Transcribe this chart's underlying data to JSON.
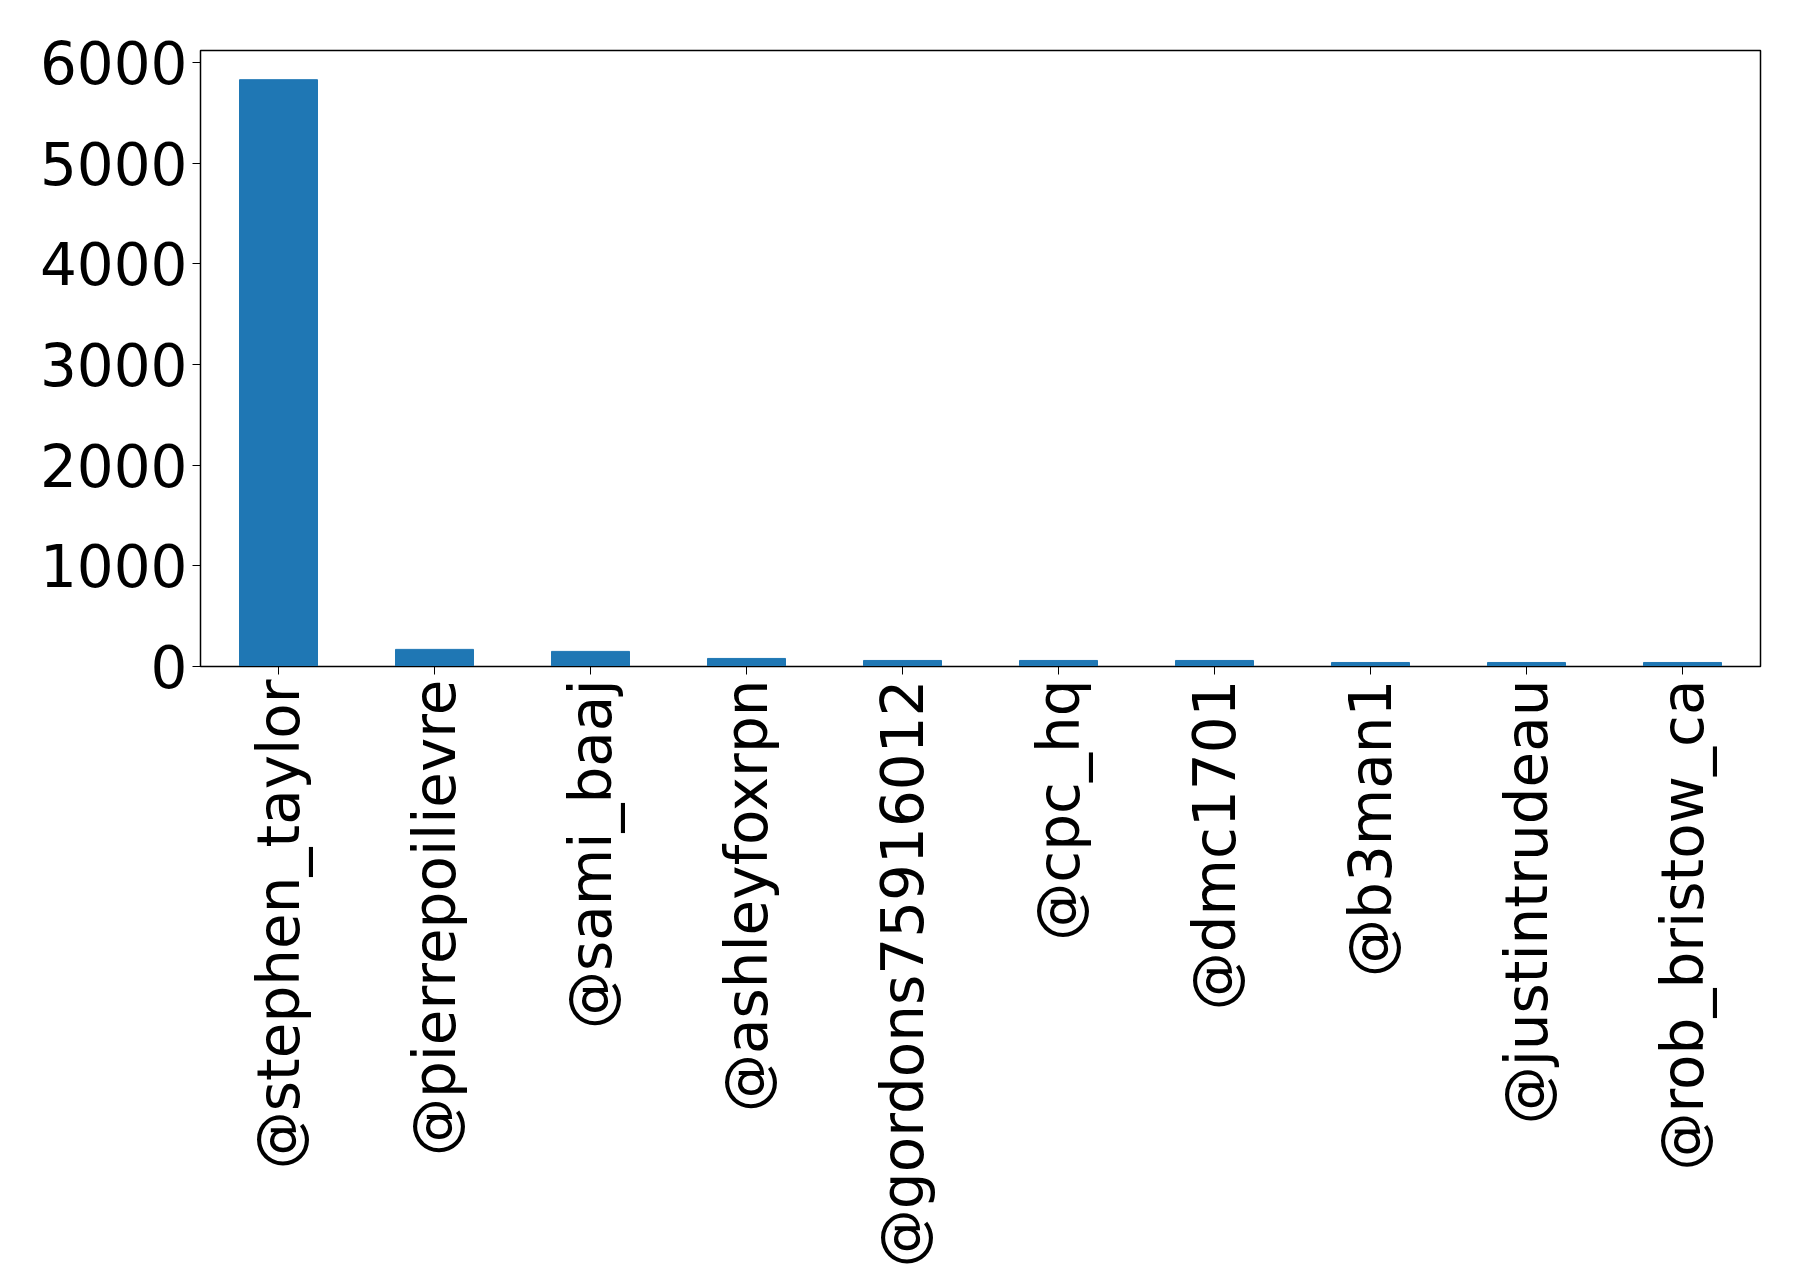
{
  "chart_data": {
    "type": "bar",
    "categories": [
      "@stephen_taylor",
      "@pierrepoilievre",
      "@sami_baaj",
      "@ashleyfoxrpn",
      "@gordons75916012",
      "@cpc_hq",
      "@dmc1701",
      "@b3man1",
      "@justintrudeau",
      "@rob_bristow_ca"
    ],
    "values": [
      5830,
      170,
      150,
      80,
      60,
      60,
      60,
      40,
      40,
      40
    ],
    "color": "#1f77b4",
    "ylim": [
      0,
      6120
    ],
    "yticks": [
      0,
      1000,
      2000,
      3000,
      4000,
      5000,
      6000
    ],
    "grid": false
  }
}
